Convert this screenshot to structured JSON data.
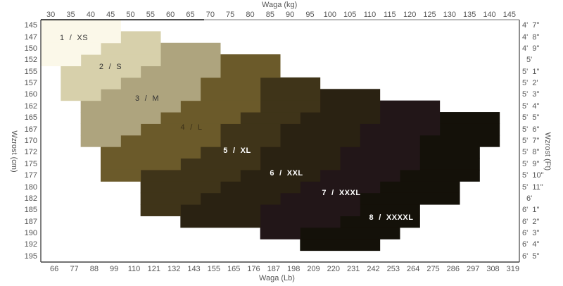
{
  "chart_data": {
    "type": "heatmap",
    "title": "",
    "xlabel_top": "Waga  (kg)",
    "xlabel_bottom": "Waga  (Lb)",
    "ylabel_left": "Wzrost  (cm)",
    "ylabel_right": "Wzrost  (Ft)",
    "x_ticks_kg": [
      "30",
      "35",
      "40",
      "45",
      "50",
      "55",
      "60",
      "65",
      "70",
      "75",
      "80",
      "85",
      "90",
      "95",
      "100",
      "105",
      "110",
      "115",
      "120",
      "125",
      "130",
      "135",
      "140",
      "145"
    ],
    "x_ticks_lb": [
      "66",
      "77",
      "88",
      "99",
      "110",
      "121",
      "132",
      "143",
      "155",
      "165",
      "176",
      "187",
      "198",
      "209",
      "220",
      "231",
      "242",
      "253",
      "264",
      "275",
      "286",
      "297",
      "308",
      "319"
    ],
    "y_ticks_cm": [
      "145",
      "147",
      "150",
      "152",
      "155",
      "157",
      "160",
      "162",
      "165",
      "167",
      "170",
      "172",
      "175",
      "177",
      "180",
      "182",
      "185",
      "187",
      "190",
      "192",
      "195"
    ],
    "y_ticks_ft": [
      "4'  7\"",
      "4'  8\"",
      "4'  9\"",
      "5'",
      "5'  1\"",
      "5'  2'",
      "5'  3\"",
      "5'  4\"",
      "5'  5\"",
      "5'  6\"",
      "5'  7\"",
      "5'  8\"",
      "5'  9\"",
      "5'  10\"",
      "5'  11\"",
      "6'",
      "6'  1\"",
      "6'  2\"",
      "6'  3\"",
      "6'  4\"",
      "6'  5\""
    ],
    "xlim_kg": [
      27.5,
      147.5
    ],
    "grid": false,
    "span_format": [
      "height_cm",
      "weight_kg_min",
      "weight_kg_max"
    ],
    "sizes": [
      {
        "label": "1  /  XS",
        "color": "#fbf8e9",
        "text_color": "#333333",
        "spans": [
          [
            145,
            27.5,
            47.5
          ],
          [
            147,
            27.5,
            47.5
          ],
          [
            150,
            27.5,
            42.5
          ],
          [
            152,
            27.5,
            37.5
          ]
        ]
      },
      {
        "label": "2  /  S",
        "color": "#d7d0ab",
        "text_color": "#333333",
        "spans": [
          [
            147,
            47.5,
            57.5
          ],
          [
            150,
            42.5,
            57.5
          ],
          [
            152,
            37.5,
            57.5
          ],
          [
            155,
            32.5,
            52.5
          ],
          [
            157,
            32.5,
            47.5
          ],
          [
            160,
            32.5,
            42.5
          ]
        ]
      },
      {
        "label": "3  /  M",
        "color": "#aea47e",
        "text_color": "#333333",
        "spans": [
          [
            150,
            57.5,
            72.5
          ],
          [
            152,
            57.5,
            72.5
          ],
          [
            155,
            52.5,
            72.5
          ],
          [
            157,
            47.5,
            67.5
          ],
          [
            160,
            42.5,
            67.5
          ],
          [
            162,
            37.5,
            62.5
          ],
          [
            165,
            37.5,
            57.5
          ],
          [
            167,
            37.5,
            52.5
          ],
          [
            170,
            37.5,
            47.5
          ]
        ]
      },
      {
        "label": "4  /  L",
        "color": "#6b5a2a",
        "text_color": "#3a3018",
        "spans": [
          [
            152,
            72.5,
            87.5
          ],
          [
            155,
            72.5,
            87.5
          ],
          [
            157,
            67.5,
            82.5
          ],
          [
            160,
            67.5,
            82.5
          ],
          [
            162,
            62.5,
            82.5
          ],
          [
            165,
            57.5,
            77.5
          ],
          [
            167,
            52.5,
            72.5
          ],
          [
            170,
            47.5,
            72.5
          ],
          [
            172,
            42.5,
            67.5
          ],
          [
            175,
            42.5,
            62.5
          ],
          [
            177,
            42.5,
            52.5
          ]
        ]
      },
      {
        "label": "5  /  XL",
        "color": "#3f3419",
        "text_color": "#ffffff",
        "spans": [
          [
            157,
            82.5,
            97.5
          ],
          [
            160,
            82.5,
            97.5
          ],
          [
            162,
            82.5,
            97.5
          ],
          [
            165,
            77.5,
            92.5
          ],
          [
            167,
            72.5,
            87.5
          ],
          [
            170,
            72.5,
            87.5
          ],
          [
            172,
            67.5,
            82.5
          ],
          [
            175,
            62.5,
            82.5
          ],
          [
            177,
            52.5,
            77.5
          ],
          [
            180,
            52.5,
            72.5
          ],
          [
            182,
            52.5,
            67.5
          ],
          [
            185,
            52.5,
            62.5
          ]
        ]
      },
      {
        "label": "6  /  XXL",
        "color": "#2a2212",
        "text_color": "#ffffff",
        "spans": [
          [
            160,
            97.5,
            112.5
          ],
          [
            162,
            97.5,
            112.5
          ],
          [
            165,
            92.5,
            112.5
          ],
          [
            167,
            87.5,
            107.5
          ],
          [
            170,
            87.5,
            107.5
          ],
          [
            172,
            82.5,
            102.5
          ],
          [
            175,
            82.5,
            102.5
          ],
          [
            177,
            77.5,
            97.5
          ],
          [
            180,
            72.5,
            92.5
          ],
          [
            182,
            67.5,
            87.5
          ],
          [
            185,
            62.5,
            82.5
          ],
          [
            187,
            62.5,
            82.5
          ]
        ]
      },
      {
        "label": "7  /  XXXL",
        "color": "#221618",
        "text_color": "#ffffff",
        "spans": [
          [
            162,
            112.5,
            127.5
          ],
          [
            165,
            112.5,
            127.5
          ],
          [
            167,
            107.5,
            127.5
          ],
          [
            170,
            107.5,
            122.5
          ],
          [
            172,
            102.5,
            122.5
          ],
          [
            175,
            102.5,
            122.5
          ],
          [
            177,
            97.5,
            117.5
          ],
          [
            180,
            92.5,
            112.5
          ],
          [
            182,
            87.5,
            107.5
          ],
          [
            185,
            82.5,
            107.5
          ],
          [
            187,
            82.5,
            102.5
          ],
          [
            190,
            82.5,
            92.5
          ]
        ]
      },
      {
        "label": "8  /  XXXXL",
        "color": "#141109",
        "text_color": "#ffffff",
        "spans": [
          [
            165,
            127.5,
            142.5
          ],
          [
            167,
            127.5,
            142.5
          ],
          [
            170,
            122.5,
            142.5
          ],
          [
            172,
            122.5,
            137.5
          ],
          [
            175,
            122.5,
            137.5
          ],
          [
            177,
            117.5,
            137.5
          ],
          [
            180,
            112.5,
            132.5
          ],
          [
            182,
            107.5,
            132.5
          ],
          [
            185,
            107.5,
            122.5
          ],
          [
            187,
            102.5,
            122.5
          ],
          [
            190,
            92.5,
            117.5
          ],
          [
            192,
            92.5,
            112.5
          ]
        ]
      }
    ]
  }
}
